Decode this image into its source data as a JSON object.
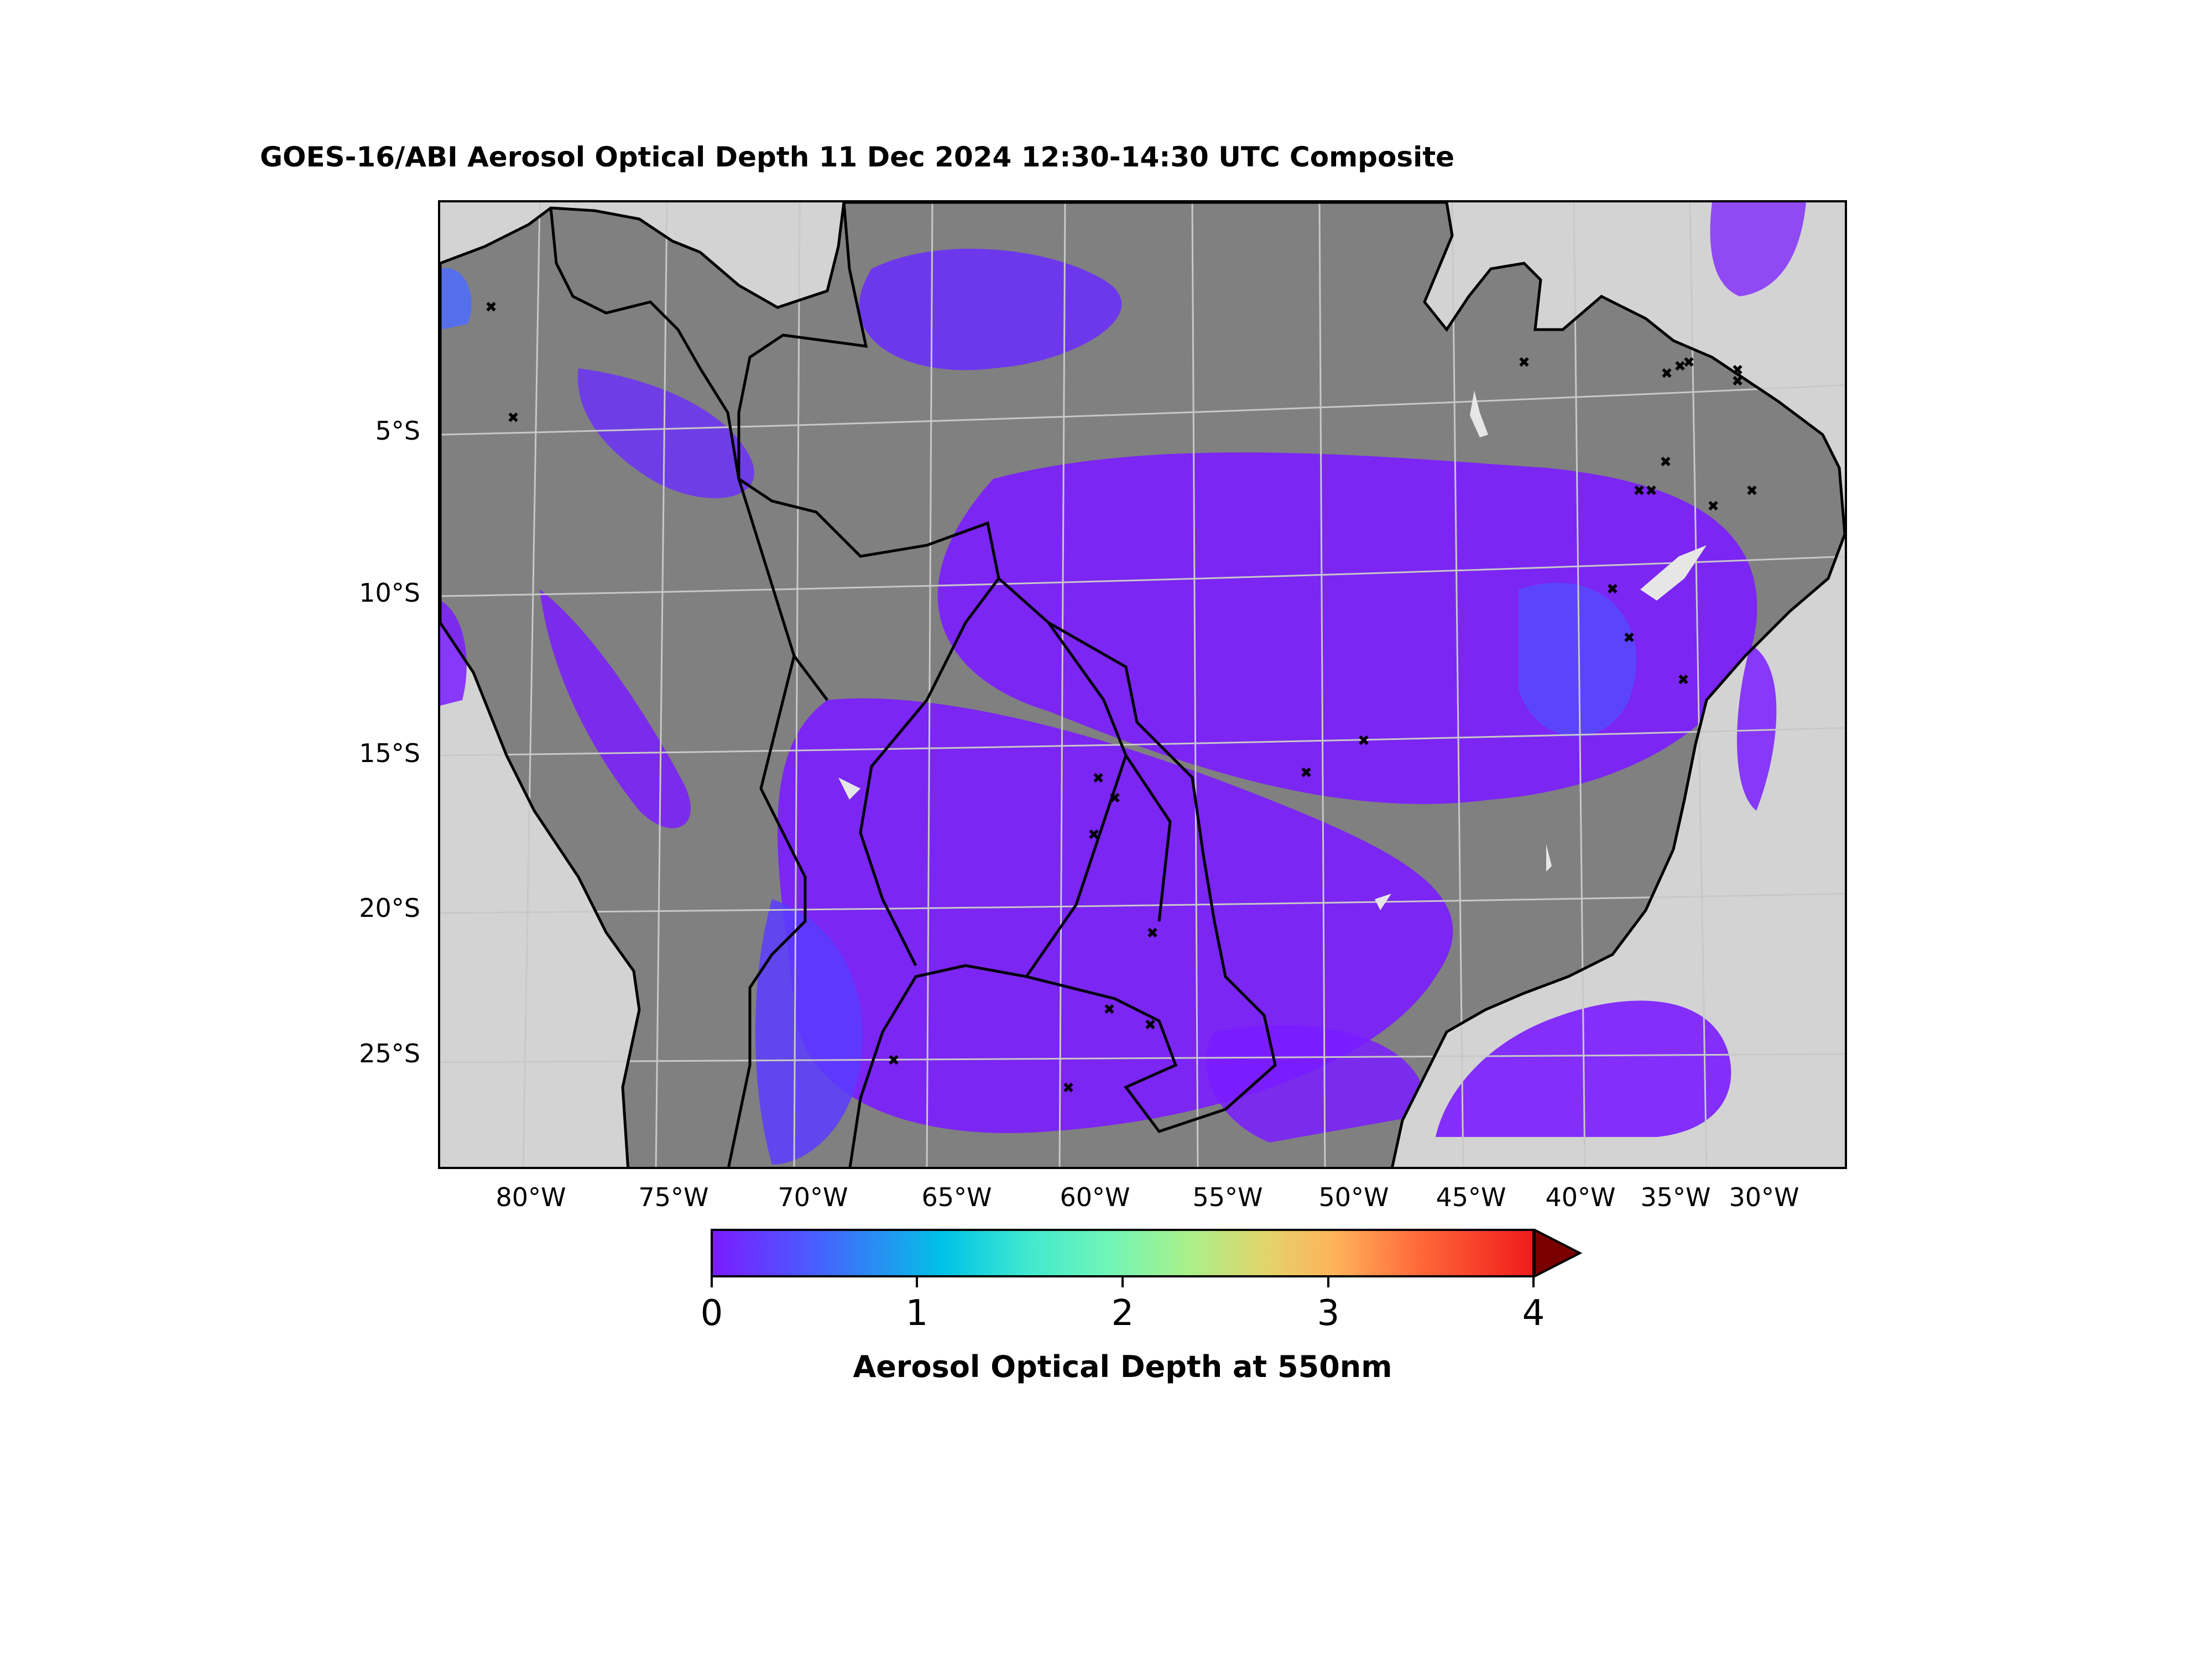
{
  "title": "GOES-16/ABI Aerosol Optical Depth  11 Dec 2024  12:30-14:30 UTC Composite",
  "map": {
    "projection_view": "South America",
    "latitude_labels": [
      "5°S",
      "10°S",
      "15°S",
      "20°S",
      "25°S"
    ],
    "longitude_labels": [
      "80°W",
      "75°W",
      "70°W",
      "65°W",
      "60°W",
      "55°W",
      "50°W",
      "45°W",
      "40°W",
      "35°W",
      "30°W"
    ],
    "colors": {
      "ocean": "#d3d3d3",
      "land_no_data": "#808080",
      "aod_low": "#7a1cff",
      "border": "#000000",
      "grid": "#bfbfbf"
    },
    "markers": "black x symbols (fire/site locations)"
  },
  "colorbar": {
    "label": "Aerosol Optical Depth at 550nm",
    "ticks": [
      "0",
      "1",
      "2",
      "3",
      "4"
    ],
    "min": 0,
    "max": 4,
    "extend": "max",
    "colormap": "rainbow"
  }
}
